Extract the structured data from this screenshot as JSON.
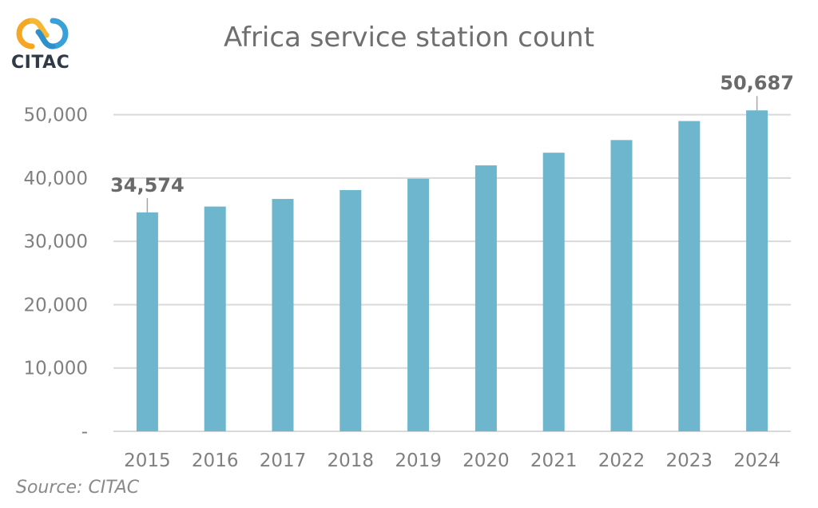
{
  "logo": {
    "text": "CITAC",
    "icon": "linked-rings-logo-icon",
    "colors": [
      "#f5a623",
      "#3aa0d8"
    ]
  },
  "source": "Source: CITAC",
  "chart_data": {
    "type": "bar",
    "title": "Africa service station count",
    "xlabel": "",
    "ylabel": "",
    "categories": [
      "2015",
      "2016",
      "2017",
      "2018",
      "2019",
      "2020",
      "2021",
      "2022",
      "2023",
      "2024"
    ],
    "values": [
      34574,
      35500,
      36700,
      38100,
      39900,
      42000,
      44000,
      46000,
      49000,
      50687
    ],
    "ylim": [
      0,
      55000
    ],
    "yticks": [
      {
        "value": 0,
        "label": "-"
      },
      {
        "value": 10000,
        "label": "10,000"
      },
      {
        "value": 20000,
        "label": "20,000"
      },
      {
        "value": 30000,
        "label": "30,000"
      },
      {
        "value": 40000,
        "label": "40,000"
      },
      {
        "value": 50000,
        "label": "50,000"
      }
    ],
    "data_labels": [
      {
        "index": 0,
        "text": "34,574"
      },
      {
        "index": 9,
        "text": "50,687"
      }
    ],
    "grid": true,
    "bar_color": "#6db6ce",
    "grid_color": "#d9d9d9"
  }
}
